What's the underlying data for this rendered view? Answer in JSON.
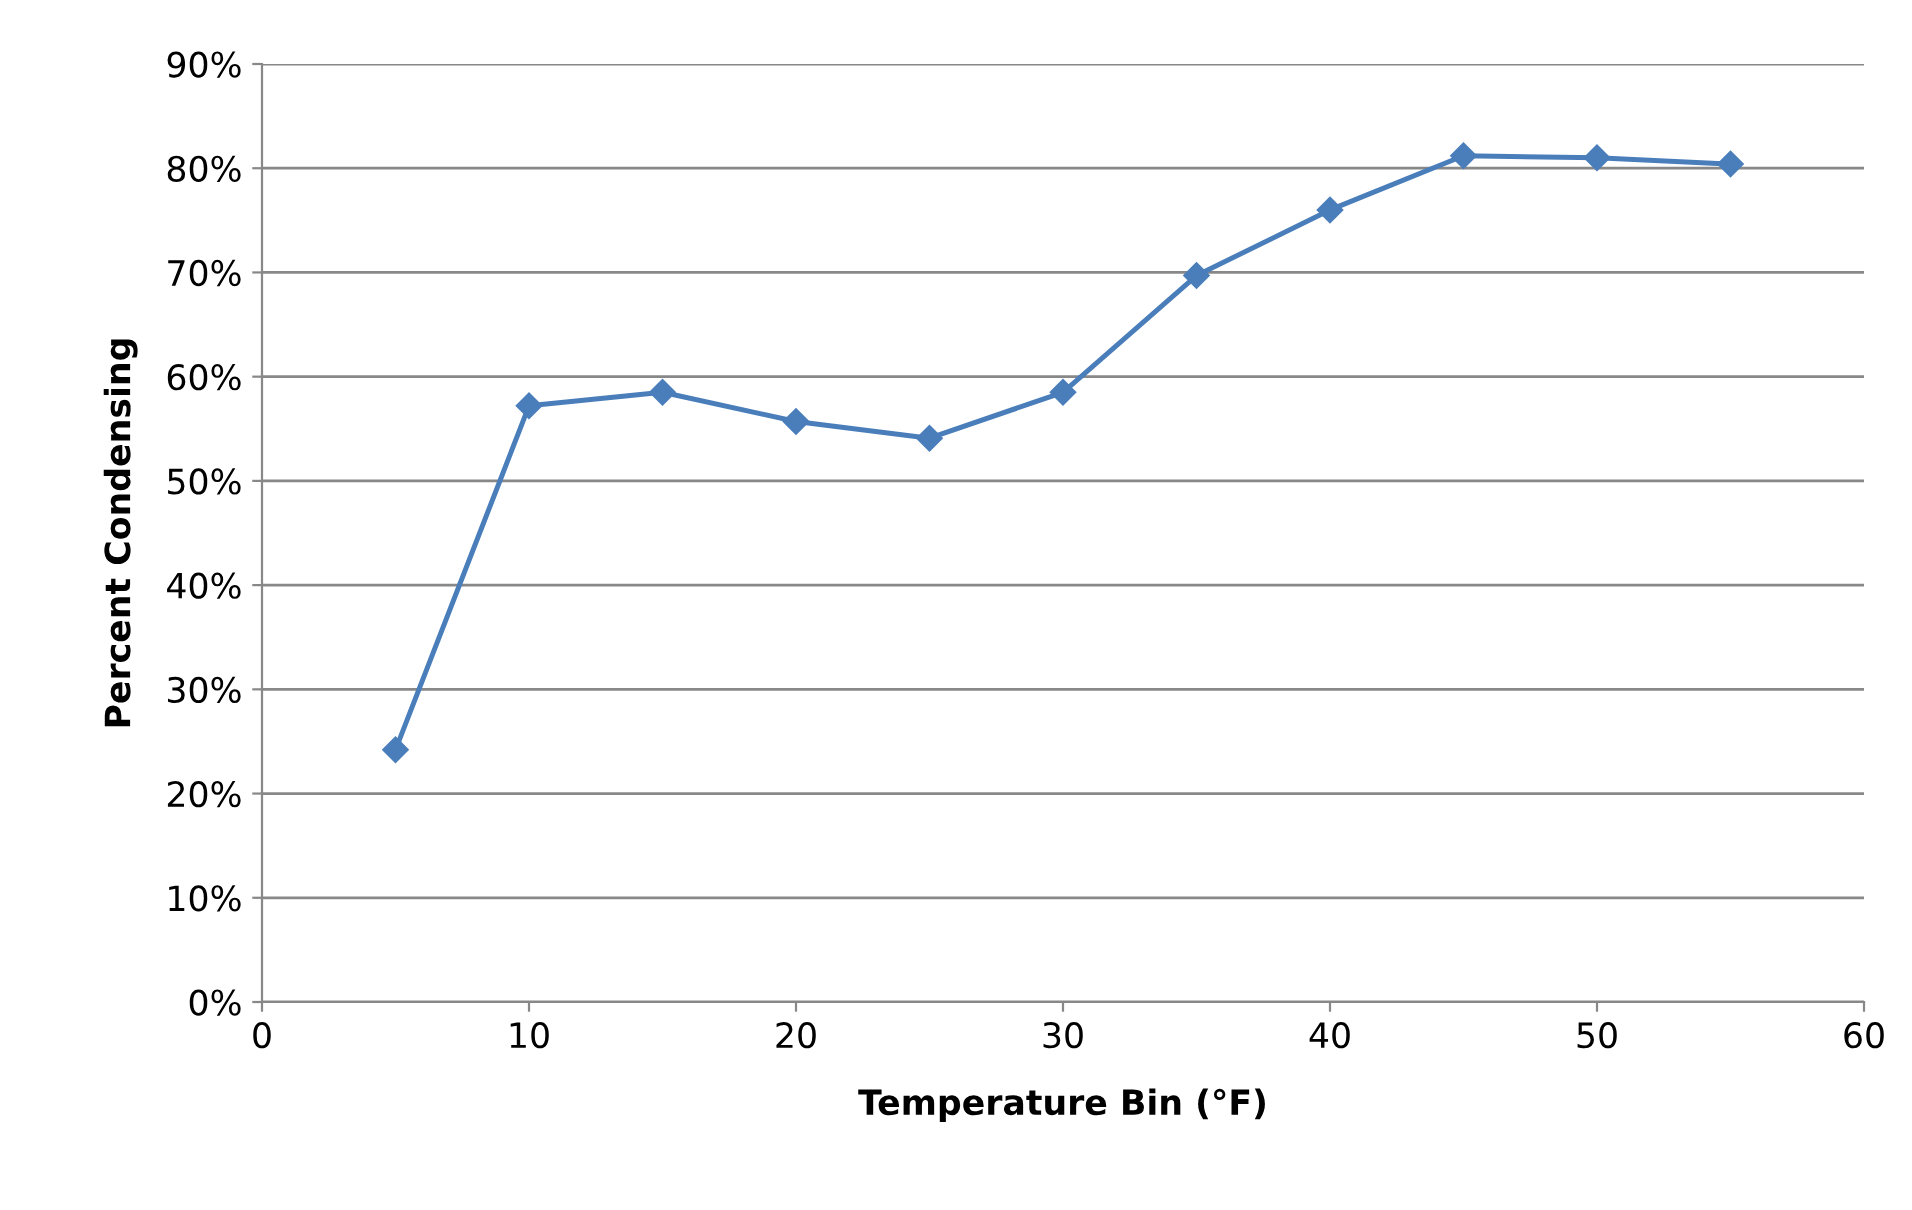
{
  "chart_data": {
    "type": "line",
    "xlabel": "Temperature Bin (°F)",
    "ylabel": "Percent Condensing",
    "x": [
      5,
      10,
      15,
      20,
      25,
      30,
      35,
      40,
      45,
      50,
      55
    ],
    "series": [
      {
        "color": "#4a7ebb",
        "values": [
          24.2,
          57.2,
          58.5,
          55.7,
          54.1,
          58.5,
          69.7,
          76.0,
          81.2,
          81.0,
          80.4
        ]
      }
    ],
    "xlim": [
      0,
      60
    ],
    "xticks": [
      0,
      10,
      20,
      30,
      40,
      50,
      60
    ],
    "ylim": [
      0,
      90
    ],
    "yticks": [
      {
        "value": 0,
        "label": "0%"
      },
      {
        "value": 10,
        "label": "10%"
      },
      {
        "value": 20,
        "label": "20%"
      },
      {
        "value": 30,
        "label": "30%"
      },
      {
        "value": 40,
        "label": "40%"
      },
      {
        "value": 50,
        "label": "50%"
      },
      {
        "value": 60,
        "label": "60%"
      },
      {
        "value": 70,
        "label": "70%"
      },
      {
        "value": 80,
        "label": "80%"
      },
      {
        "value": 90,
        "label": "90%"
      }
    ],
    "grid": "y",
    "marker": "diamond",
    "line_style": "solid"
  }
}
